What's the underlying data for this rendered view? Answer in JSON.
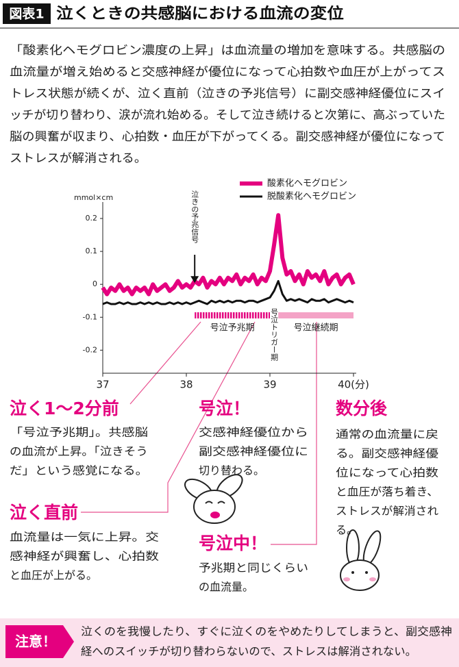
{
  "header": {
    "badge": "図表1",
    "title": "泣くときの共感脳における血流の変位"
  },
  "intro": {
    "lines": [
      "「酸素化ヘモグロビン濃度の上昇」は血流量の増加を意味する。共感脳の",
      "血流量が増え始めると交感神経が優位になって心拍数や血圧が上がってス",
      "トレス状態が続くが、泣く直前（泣きの予兆信号）に副交感神経優位にスイ",
      "ッチが切り替わり、涙が流れ始める。そして泣き続けると次第に、高ぶっていた",
      "脳の興奮が収まり、心拍数・血圧が下がってくる。副交感神経が優位になって",
      "ストレスが解消される。"
    ]
  },
  "chart_data": {
    "type": "line",
    "y_unit": "mmol×cm",
    "x": [
      37,
      37.05,
      37.1,
      37.15,
      37.2,
      37.25,
      37.3,
      37.35,
      37.4,
      37.45,
      37.5,
      37.55,
      37.6,
      37.65,
      37.7,
      37.75,
      37.8,
      37.85,
      37.9,
      37.95,
      38,
      38.05,
      38.1,
      38.15,
      38.2,
      38.25,
      38.3,
      38.35,
      38.4,
      38.45,
      38.5,
      38.55,
      38.6,
      38.65,
      38.7,
      38.75,
      38.8,
      38.85,
      38.9,
      38.95,
      39,
      39.05,
      39.1,
      39.15,
      39.2,
      39.25,
      39.3,
      39.35,
      39.4,
      39.45,
      39.5,
      39.55,
      39.6,
      39.65,
      39.7,
      39.75,
      39.8,
      39.85,
      39.9,
      39.95,
      40
    ],
    "series": [
      {
        "name": "酸素化ヘモグロビン",
        "color": "#e4007f",
        "width": 6,
        "values": [
          -0.01,
          -0.03,
          -0.01,
          -0.02,
          0,
          -0.02,
          -0.01,
          -0.03,
          -0.01,
          -0.02,
          -0.01,
          -0.03,
          0,
          -0.02,
          -0.01,
          0,
          -0.02,
          -0.01,
          0.01,
          -0.01,
          0,
          -0.01,
          0.01,
          0,
          0.02,
          -0.01,
          0.01,
          0,
          0.02,
          0,
          0.02,
          0.01,
          0.03,
          0,
          0.02,
          0.01,
          0.03,
          0,
          0.02,
          0.01,
          0.04,
          0.12,
          0.21,
          0.08,
          0.03,
          0.04,
          0.01,
          0.03,
          0,
          0.04,
          0.02,
          0.03,
          0.01,
          0.04,
          0,
          0.02,
          0.03,
          0,
          0.02,
          0.03,
          0
        ]
      },
      {
        "name": "脱酸素化ヘモグロビン",
        "color": "#111111",
        "width": 3,
        "values": [
          -0.06,
          -0.055,
          -0.06,
          -0.06,
          -0.055,
          -0.06,
          -0.055,
          -0.06,
          -0.06,
          -0.055,
          -0.06,
          -0.055,
          -0.06,
          -0.055,
          -0.06,
          -0.06,
          -0.055,
          -0.06,
          -0.055,
          -0.06,
          -0.055,
          -0.06,
          -0.055,
          -0.05,
          -0.055,
          -0.06,
          -0.05,
          -0.055,
          -0.05,
          -0.055,
          -0.05,
          -0.055,
          -0.05,
          -0.05,
          -0.055,
          -0.05,
          -0.05,
          -0.055,
          -0.05,
          -0.045,
          -0.04,
          -0.02,
          0.01,
          -0.03,
          -0.05,
          -0.045,
          -0.05,
          -0.045,
          -0.05,
          -0.055,
          -0.045,
          -0.05,
          -0.05,
          -0.045,
          -0.055,
          -0.05,
          -0.045,
          -0.05,
          -0.055,
          -0.05,
          -0.055
        ]
      }
    ],
    "xlim": [
      37,
      40
    ],
    "ylim": [
      -0.27,
      0.25
    ],
    "xticks": [
      37,
      38,
      39,
      {
        "value": 40,
        "label": "40(分)"
      }
    ],
    "yticks": [
      0.2,
      0.1,
      0,
      -0.1,
      -0.2
    ],
    "annotations": [
      {
        "text": "泣きの予兆信号",
        "x": 38.1,
        "y": 0
      },
      {
        "text": "号泣トリガー期",
        "x": 39.05
      }
    ],
    "periods": [
      {
        "label": "号泣予兆期",
        "x": [
          38.1,
          39.0
        ],
        "color": "#e4007f"
      },
      {
        "label": "号泣継続期",
        "x": [
          39.1,
          40.0
        ],
        "color": "#f4a3c6"
      }
    ]
  },
  "callouts": [
    {
      "heading": "泣く1〜2分前",
      "lines": [
        "「号泣予兆期」。共感脳",
        "の血流が上昇。「泣きそう",
        "だ」という感覚になる。"
      ]
    },
    {
      "heading": "号泣！",
      "lines": [
        "交感神経優位から",
        "副交感神経優位に",
        "切り替わる。"
      ]
    },
    {
      "heading": "数分後",
      "lines": [
        "通常の血流量に戻",
        "る。副交感神経優",
        "位になって心拍数",
        "と血圧が落ち着き、",
        "ストレスが解消され",
        "る。"
      ]
    },
    {
      "heading": "泣く直前",
      "lines": [
        "血流量は一気に上昇。交",
        "感神経が興奮し、心拍数",
        "と血圧が上がる。"
      ]
    },
    {
      "heading": "号泣中！",
      "lines": [
        "予兆期と同じくらい",
        "の血流量。"
      ]
    }
  ],
  "note": {
    "label": "注意！",
    "lines": [
      "泣くのを我慢したり、すぐに泣くのをやめたりしてしまうと、副交感神",
      "経へのスイッチが切り替わらないので、ストレスは解消されない。"
    ]
  }
}
